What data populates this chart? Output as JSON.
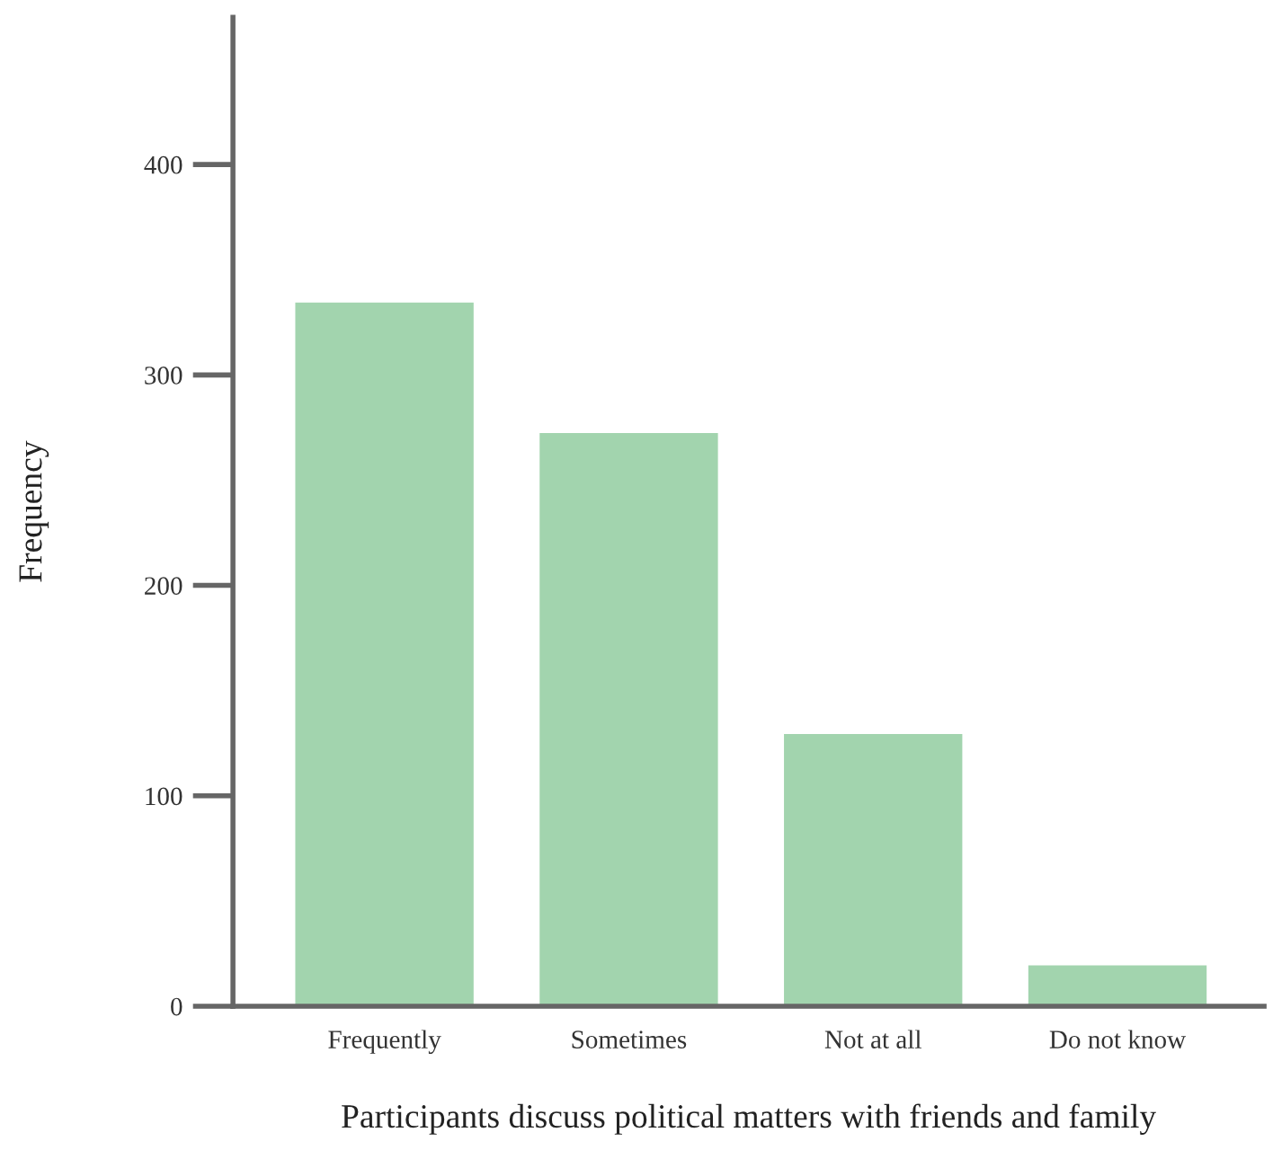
{
  "chart_data": {
    "type": "bar",
    "xlabel": "Participants discuss political matters with friends and family",
    "ylabel": "Frequency",
    "categories": [
      "Frequently",
      "Sometimes",
      "Not at all",
      "Do not know"
    ],
    "values": [
      335,
      273,
      130,
      20
    ],
    "color": "#a2d4ae",
    "ylim": [
      0,
      470
    ],
    "yticks": [
      0,
      100,
      200,
      300,
      400
    ],
    "grid": false
  }
}
